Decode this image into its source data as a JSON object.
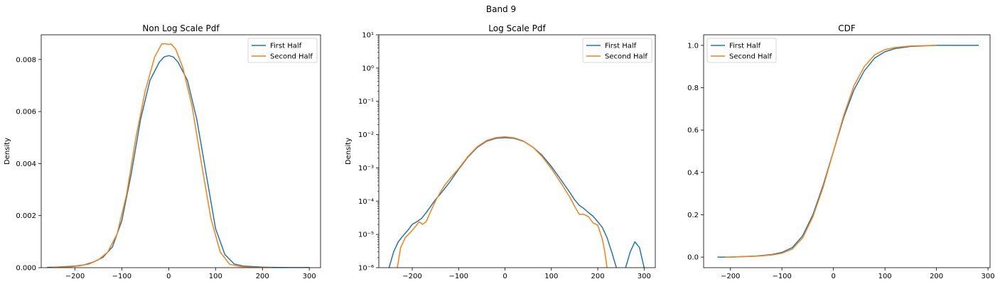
{
  "figure": {
    "suptitle": "Band 9"
  },
  "colors": {
    "first_half": "#1f77b4",
    "second_half": "#ff7f0e"
  },
  "chart_data": [
    {
      "type": "line",
      "title": "Non Log Scale Pdf",
      "xlabel": "",
      "ylabel": "Density",
      "xlim": [
        -272,
        324
      ],
      "ylim": [
        0,
        0.00895
      ],
      "xticks": [
        -200,
        -100,
        0,
        100,
        200,
        300
      ],
      "xtick_labels": [
        "−200",
        "−100",
        "0",
        "100",
        "200",
        "300"
      ],
      "yticks": [
        0,
        0.002,
        0.004,
        0.006,
        0.008
      ],
      "ytick_labels": [
        "0.000",
        "0.002",
        "0.004",
        "0.006",
        "0.008"
      ],
      "legend": {
        "location": "upper right",
        "entries": [
          "First Half",
          "Second Half"
        ]
      },
      "series": [
        {
          "name": "First Half",
          "x": [
            -260,
            -240,
            -220,
            -200,
            -180,
            -160,
            -140,
            -120,
            -100,
            -80,
            -60,
            -40,
            -20,
            -10,
            0,
            10,
            20,
            40,
            60,
            80,
            100,
            120,
            140,
            160,
            180,
            200,
            220,
            240,
            260,
            280,
            300
          ],
          "y": [
            1e-05,
            2e-05,
            4e-05,
            6e-05,
            0.00011,
            0.00022,
            0.0004,
            0.0008,
            0.0018,
            0.0036,
            0.0057,
            0.0072,
            0.0079,
            0.0081,
            0.00815,
            0.0081,
            0.0079,
            0.0072,
            0.0057,
            0.0036,
            0.0015,
            0.0005,
            0.00014,
            6e-05,
            4e-05,
            2e-05,
            1e-05,
            5e-06,
            4e-06,
            3e-06,
            6e-06
          ]
        },
        {
          "name": "Second Half",
          "x": [
            -250,
            -230,
            -210,
            -190,
            -170,
            -150,
            -130,
            -110,
            -90,
            -70,
            -50,
            -30,
            -15,
            -5,
            0,
            5,
            15,
            30,
            50,
            70,
            90,
            110,
            130,
            150,
            170,
            190,
            210,
            220
          ],
          "y": [
            1e-05,
            2e-05,
            3e-05,
            7e-05,
            0.00014,
            0.0003,
            0.0006,
            0.0013,
            0.0028,
            0.005,
            0.0068,
            0.0081,
            0.0086,
            0.0086,
            0.00858,
            0.0086,
            0.0084,
            0.0077,
            0.0062,
            0.004,
            0.0019,
            0.0006,
            0.00013,
            5e-05,
            2e-05,
            1e-05,
            5e-06,
            2e-06
          ]
        }
      ]
    },
    {
      "type": "line",
      "title": "Log Scale Pdf",
      "xlabel": "",
      "ylabel": "Density",
      "xlim": [
        -272,
        324
      ],
      "ylim": [
        1e-06,
        10
      ],
      "yscale": "log",
      "xticks": [
        -200,
        -100,
        0,
        100,
        200,
        300
      ],
      "xtick_labels": [
        "−200",
        "−100",
        "0",
        "100",
        "200",
        "300"
      ],
      "yticks": [
        -6,
        -5,
        -4,
        -3,
        -2,
        -1,
        0,
        1
      ],
      "ytick_labels": [
        "10⁻⁶",
        "10⁻⁵",
        "10⁻⁴",
        "10⁻³",
        "10⁻²",
        "10⁻¹",
        "10⁰",
        "10¹"
      ],
      "legend": {
        "location": "upper right",
        "entries": [
          "First Half",
          "Second Half"
        ]
      },
      "series": [
        {
          "name": "First Half",
          "x": [
            -250,
            -240,
            -230,
            -220,
            -210,
            -200,
            -190,
            -180,
            -170,
            -160,
            -150,
            -140,
            -130,
            -120,
            -100,
            -80,
            -60,
            -40,
            -20,
            0,
            20,
            40,
            60,
            80,
            100,
            120,
            140,
            150,
            160,
            170,
            180,
            190,
            200,
            210,
            220,
            230,
            240,
            250,
            260,
            270,
            280,
            290,
            300
          ],
          "y": [
            1e-06,
            3e-06,
            6e-06,
            9e-06,
            1.3e-05,
            2e-05,
            2.4e-05,
            3e-05,
            4.5e-05,
            7e-05,
            0.00011,
            0.00016,
            0.00024,
            0.00036,
            0.0009,
            0.0021,
            0.0041,
            0.0063,
            0.0077,
            0.0081,
            0.0077,
            0.0063,
            0.0042,
            0.0024,
            0.0011,
            0.00045,
            0.00018,
            0.00011,
            7.5e-05,
            6e-05,
            4.5e-05,
            3.5e-05,
            2.4e-05,
            1.6e-05,
            8e-06,
            3e-06,
            1e-06,
            6e-07,
            1e-06,
            3e-06,
            6e-06,
            4e-06,
            1e-06
          ]
        },
        {
          "name": "Second Half",
          "x": [
            -232,
            -225,
            -215,
            -205,
            -195,
            -185,
            -178,
            -170,
            -160,
            -150,
            -140,
            -130,
            -120,
            -100,
            -80,
            -60,
            -40,
            -20,
            0,
            20,
            40,
            60,
            80,
            100,
            120,
            140,
            150,
            160,
            170,
            180,
            190,
            200,
            210,
            215,
            220
          ],
          "y": [
            1e-06,
            4e-06,
            8e-06,
            1.1e-05,
            1.6e-05,
            2.4e-05,
            2e-05,
            2.4e-05,
            5e-05,
            0.0001,
            0.00018,
            0.0003,
            0.00045,
            0.00095,
            0.0022,
            0.0043,
            0.0066,
            0.0081,
            0.0086,
            0.008,
            0.0064,
            0.0042,
            0.0022,
            0.00095,
            0.00036,
            0.00013,
            7e-05,
            4e-05,
            4e-05,
            3.4e-05,
            2.2e-05,
            1.9e-05,
            7e-06,
            3e-06,
            1e-06
          ]
        }
      ]
    },
    {
      "type": "line",
      "title": "CDF",
      "xlabel": "",
      "ylabel": "",
      "xlim": [
        -252,
        304
      ],
      "ylim": [
        -0.05,
        1.05
      ],
      "xticks": [
        -200,
        -100,
        0,
        100,
        200,
        300
      ],
      "xtick_labels": [
        "−200",
        "−100",
        "0",
        "100",
        "200",
        "300"
      ],
      "yticks": [
        0,
        0.2,
        0.4,
        0.6,
        0.8,
        1.0
      ],
      "ytick_labels": [
        "0.0",
        "0.2",
        "0.4",
        "0.6",
        "0.8",
        "1.0"
      ],
      "legend": {
        "location": "upper left",
        "entries": [
          "First Half",
          "Second Half"
        ]
      },
      "series": [
        {
          "name": "First Half",
          "x": [
            -225,
            -200,
            -150,
            -120,
            -100,
            -80,
            -60,
            -40,
            -20,
            0,
            20,
            40,
            60,
            80,
            100,
            120,
            150,
            200,
            250,
            282
          ],
          "y": [
            0.0,
            0.0,
            0.005,
            0.012,
            0.022,
            0.045,
            0.1,
            0.2,
            0.34,
            0.5,
            0.66,
            0.79,
            0.88,
            0.94,
            0.97,
            0.985,
            0.995,
            1.0,
            1.0,
            1.0
          ]
        },
        {
          "name": "Second Half",
          "x": [
            -210,
            -200,
            -150,
            -120,
            -100,
            -80,
            -60,
            -40,
            -20,
            0,
            20,
            40,
            60,
            80,
            100,
            120,
            150,
            200
          ],
          "y": [
            0.0,
            0.0,
            0.004,
            0.01,
            0.018,
            0.038,
            0.09,
            0.19,
            0.33,
            0.5,
            0.67,
            0.81,
            0.9,
            0.955,
            0.98,
            0.99,
            0.997,
            1.0
          ]
        }
      ]
    }
  ]
}
